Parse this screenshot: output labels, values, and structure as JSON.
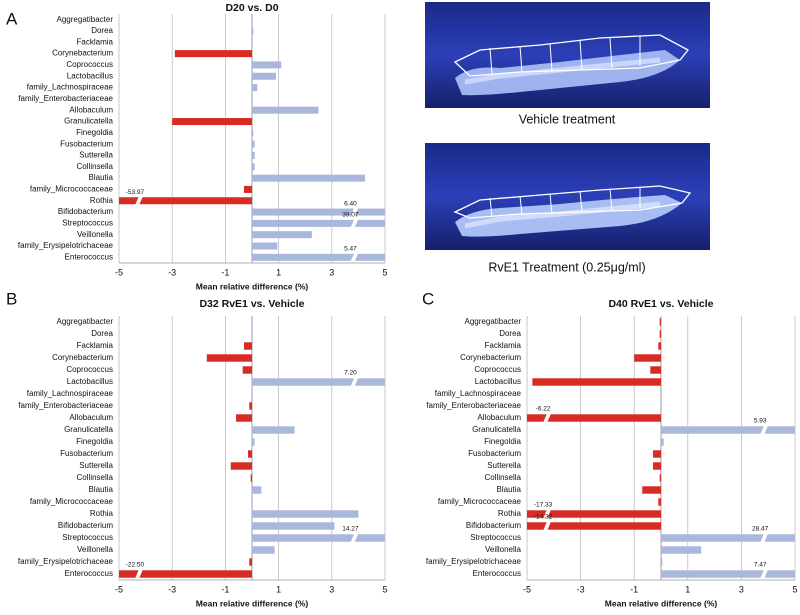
{
  "labels": [
    "A",
    "B",
    "C"
  ],
  "images": [
    {
      "caption": "Vehicle treatment"
    },
    {
      "caption": "RvE1  Treatment  (0.25μg/ml)"
    }
  ],
  "chart_data": [
    {
      "type": "hbar",
      "title": "D20 vs. D0",
      "x_label": "Mean relative difference (%)",
      "categories": [
        "Aggregatibacter",
        "Dorea",
        "Facklamia",
        "Corynebacterium",
        "Coprococcus",
        "Lactobacillus",
        "family_Lachnospiraceae",
        "family_Enterobacteriaceae",
        "Allobaculum",
        "Granulicatella",
        "Finegoldia",
        "Fusobacterium",
        "Sutterella",
        "Collinsella",
        "Blautia",
        "family_Micrococcaceae",
        "Rothia",
        "Bifidobacterium",
        "Streptococcus",
        "Veillonella",
        "family_Erysipelotrichaceae",
        "Enterococcus"
      ],
      "values": [
        0.02,
        0.05,
        0.02,
        -2.9,
        1.1,
        0.9,
        0.2,
        0.02,
        2.5,
        -3.0,
        0.05,
        0.1,
        0.1,
        0.1,
        4.25,
        -0.3,
        -53.97,
        6.4,
        39.07,
        2.25,
        0.95,
        5.47
      ],
      "value_labels": [
        null,
        null,
        null,
        null,
        null,
        null,
        null,
        null,
        null,
        null,
        null,
        null,
        null,
        null,
        null,
        null,
        "-53.97",
        "6.40",
        "39.07",
        null,
        null,
        "5.47"
      ],
      "positive_color": "#a9b7dd",
      "negative_color": "#d92b25",
      "xlim": [
        -5,
        5
      ],
      "xticks": [
        -5,
        -3,
        -1,
        1,
        3,
        5
      ],
      "grid": true
    },
    {
      "type": "hbar",
      "title": "D32 RvE1 vs. Vehicle",
      "x_label": "Mean relative difference (%)",
      "categories": [
        "Aggregatibacter",
        "Dorea",
        "Facklamia",
        "Corynebacterium",
        "Coprococcus",
        "Lactobacillus",
        "family_Lachnospiraceae",
        "family_Enterobacteriaceae",
        "Allobaculum",
        "Granulicatella",
        "Finegoldia",
        "Fusobacterium",
        "Sutterella",
        "Collinsella",
        "Blautia",
        "family_Micrococcaceae",
        "Rothia",
        "Bifidobacterium",
        "Streptococcus",
        "Veillonella",
        "family_Erysipelotrichaceae",
        "Enterococcus"
      ],
      "values": [
        0.0,
        0.0,
        -0.3,
        -1.7,
        -0.35,
        7.2,
        0.0,
        -0.1,
        -0.6,
        1.6,
        0.1,
        -0.15,
        -0.8,
        -0.05,
        0.35,
        0.0,
        4.0,
        3.1,
        14.27,
        0.85,
        -0.1,
        -22.5
      ],
      "value_labels": [
        null,
        null,
        null,
        null,
        null,
        "7.20",
        null,
        null,
        null,
        null,
        null,
        null,
        null,
        null,
        null,
        null,
        null,
        null,
        "14.27",
        null,
        null,
        "-22.50"
      ],
      "positive_color": "#a9b7dd",
      "negative_color": "#d92b25",
      "xlim": [
        -5,
        5
      ],
      "xticks": [
        -5,
        -3,
        -1,
        1,
        3,
        5
      ],
      "grid": true
    },
    {
      "type": "hbar",
      "title": "D40 RvE1 vs. Vehicle",
      "x_label": "Mean relative difference (%)",
      "categories": [
        "Aggregatibacter",
        "Dorea",
        "Facklamia",
        "Corynebacterium",
        "Coprococcus",
        "Lactobacillus",
        "family_Lachnospiraceae",
        "family_Enterobacteriaceae",
        "Allobaculum",
        "Granulicatella",
        "Finegoldia",
        "Fusobacterium",
        "Sutterella",
        "Collinsella",
        "Blautia",
        "family_Micrococcaceae",
        "Rothia",
        "Bifidobacterium",
        "Streptococcus",
        "Veillonella",
        "family_Erysipelotrichaceae",
        "Enterococcus"
      ],
      "values": [
        -0.05,
        -0.05,
        -0.1,
        -1.0,
        -0.4,
        -4.8,
        0.0,
        0.0,
        -6.22,
        5.93,
        0.1,
        -0.3,
        -0.3,
        -0.05,
        -0.7,
        -0.1,
        -17.33,
        -14.32,
        28.47,
        1.5,
        0.05,
        7.47
      ],
      "value_labels": [
        null,
        null,
        null,
        null,
        null,
        null,
        null,
        null,
        "-6.22",
        "5.93",
        null,
        null,
        null,
        null,
        null,
        null,
        "-17.33",
        "-14.32",
        "28.47",
        null,
        null,
        "7.47"
      ],
      "positive_color": "#a9b7dd",
      "negative_color": "#d92b25",
      "xlim": [
        -5,
        5
      ],
      "xticks": [
        -5,
        -3,
        -1,
        1,
        3,
        5
      ],
      "grid": true
    }
  ]
}
